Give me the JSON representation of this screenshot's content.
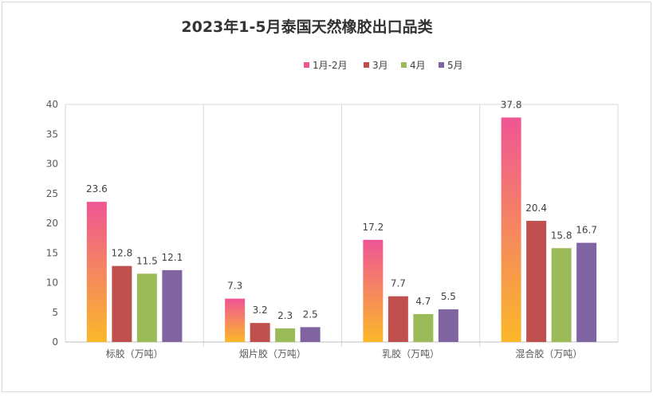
{
  "chart_data": {
    "type": "bar",
    "title": "2023年1-5月泰国天然橡胶出口品类",
    "categories": [
      "标胶（万吨）",
      "烟片胶（万吨）",
      "乳胶（万吨）",
      "混合胶（万吨）"
    ],
    "series": [
      {
        "name": "1月-2月",
        "values": [
          23.6,
          7.3,
          17.2,
          37.8
        ],
        "gradient": [
          "#FBB829",
          "#EF5595"
        ]
      },
      {
        "name": "3月",
        "values": [
          12.8,
          3.2,
          7.7,
          20.4
        ],
        "color": "#C0504D"
      },
      {
        "name": "4月",
        "values": [
          11.5,
          2.3,
          4.7,
          15.8
        ],
        "color": "#9BBB59"
      },
      {
        "name": "5月",
        "values": [
          12.1,
          2.5,
          5.5,
          16.7
        ],
        "color": "#8064A2"
      }
    ],
    "ylim": [
      0,
      40
    ],
    "yticks": [
      0,
      5,
      10,
      15,
      20,
      25,
      30,
      35,
      40
    ],
    "legend_position": "top",
    "grid": "category-separators",
    "data_labels": true
  }
}
